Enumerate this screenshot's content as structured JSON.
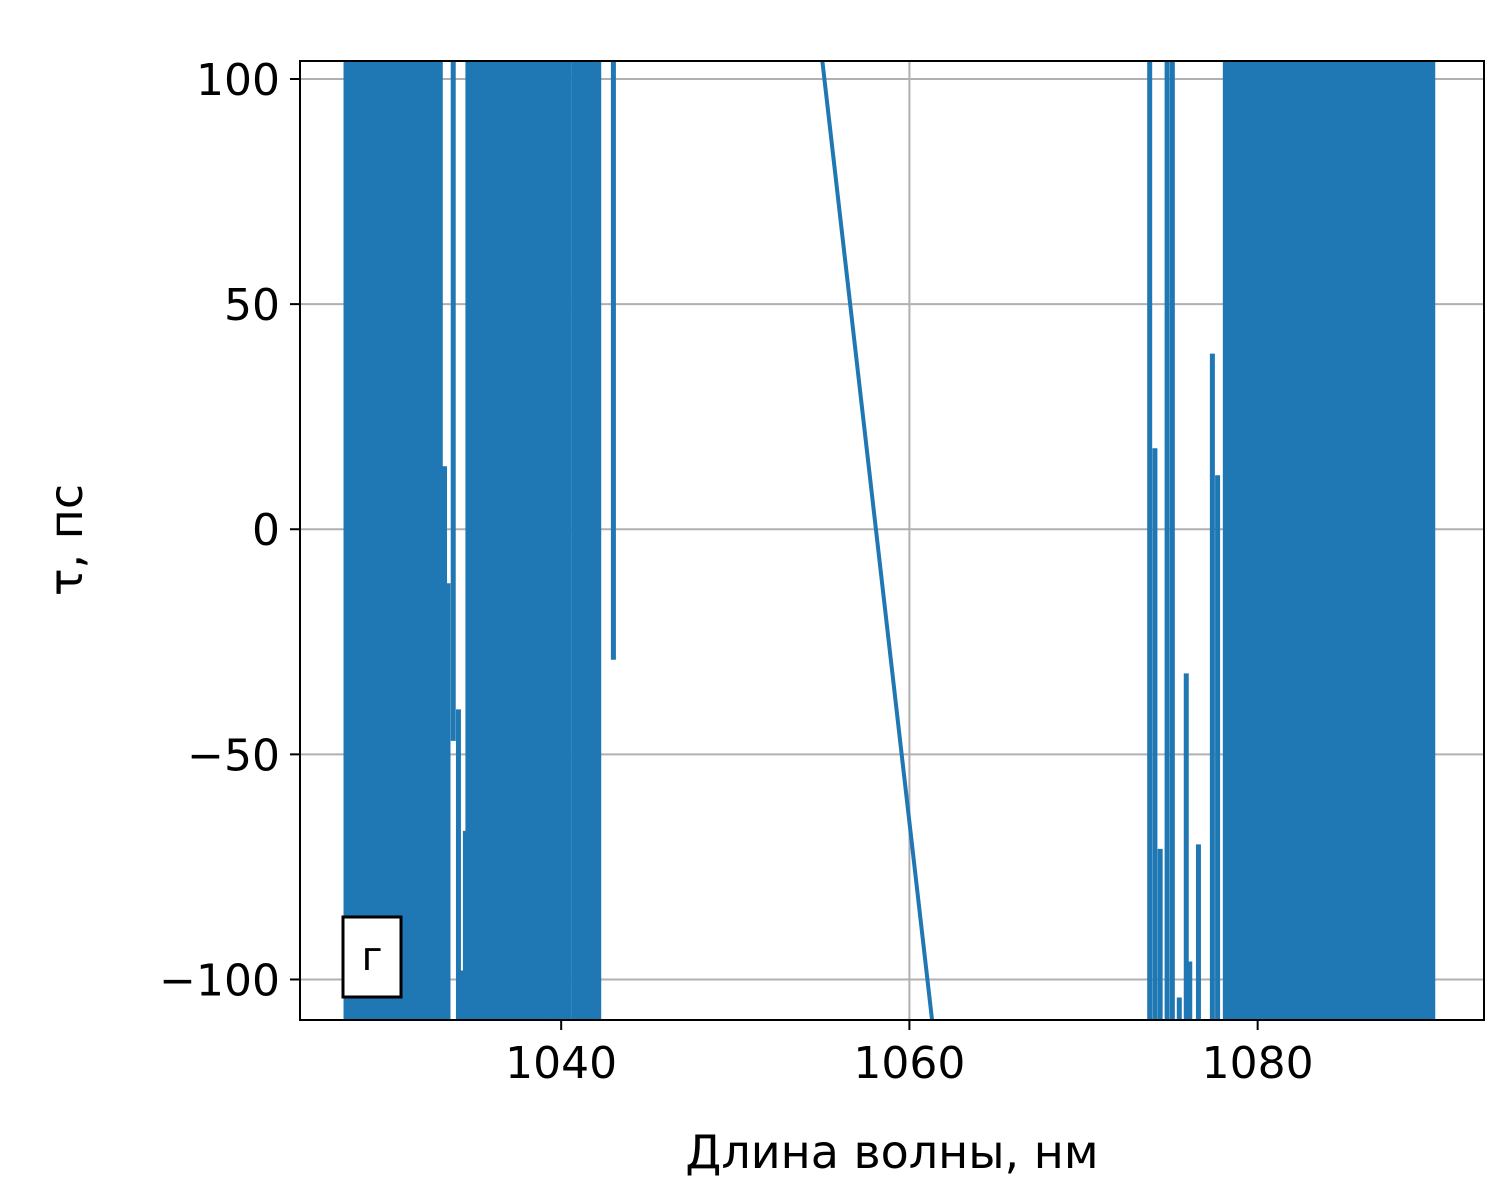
{
  "chart_data": {
    "type": "line",
    "xlabel": "Длина волны, нм",
    "ylabel": "τ, пс",
    "xlim": [
      1025,
      1093
    ],
    "ylim": [
      -109,
      104
    ],
    "xticks": [
      1040,
      1060,
      1080
    ],
    "xtick_labels": [
      "1040",
      "1060",
      "1080"
    ],
    "yticks": [
      100,
      50,
      0,
      -50,
      -100
    ],
    "ytick_labels": [
      "100",
      "50",
      "0",
      "−50",
      "−100"
    ],
    "grid": true,
    "panel_label": "г",
    "line_color": "#1f77b4",
    "series": [
      {
        "x": [
          1055.0,
          1061.3
        ],
        "y": [
          104,
          -109
        ]
      }
    ],
    "noise_bands": [
      {
        "x_range": [
          1027.5,
          1033.2
        ]
      },
      {
        "x_range": [
          1034.5,
          1039.1
        ]
      },
      {
        "x_range": [
          1039.1,
          1040.6
        ]
      },
      {
        "x_range": [
          1040.6,
          1042.3
        ]
      },
      {
        "x_range": [
          1078.0,
          1090.2
        ]
      }
    ],
    "spikes": [
      {
        "x": 1033.3,
        "y": [
          -109,
          14
        ]
      },
      {
        "x": 1033.5,
        "y": [
          -109,
          -12
        ]
      },
      {
        "x": 1033.8,
        "y": [
          -47,
          104
        ]
      },
      {
        "x": 1034.1,
        "y": [
          -109,
          -40
        ]
      },
      {
        "x": 1034.3,
        "y": [
          -109,
          -98
        ]
      },
      {
        "x": 1034.5,
        "y": [
          -109,
          -67
        ]
      },
      {
        "x": 1039.5,
        "y": [
          -39,
          66
        ]
      },
      {
        "x": 1040.0,
        "y": [
          5,
          104
        ]
      },
      {
        "x": 1041.1,
        "y": [
          -109,
          104
        ]
      },
      {
        "x": 1041.3,
        "y": [
          -109,
          104
        ]
      },
      {
        "x": 1041.6,
        "y": [
          -13,
          104
        ]
      },
      {
        "x": 1043.0,
        "y": [
          -29,
          104
        ]
      },
      {
        "x": 1073.8,
        "y": [
          -109,
          104
        ]
      },
      {
        "x": 1074.1,
        "y": [
          -109,
          18
        ]
      },
      {
        "x": 1074.4,
        "y": [
          -109,
          -71
        ]
      },
      {
        "x": 1074.8,
        "y": [
          -109,
          104
        ]
      },
      {
        "x": 1075.1,
        "y": [
          -109,
          104
        ]
      },
      {
        "x": 1075.5,
        "y": [
          -109,
          -104
        ]
      },
      {
        "x": 1075.9,
        "y": [
          -109,
          -32
        ]
      },
      {
        "x": 1076.1,
        "y": [
          -109,
          -96
        ]
      },
      {
        "x": 1076.6,
        "y": [
          -109,
          -70
        ]
      },
      {
        "x": 1077.4,
        "y": [
          -109,
          39
        ]
      },
      {
        "x": 1077.7,
        "y": [
          -109,
          12
        ]
      }
    ]
  }
}
